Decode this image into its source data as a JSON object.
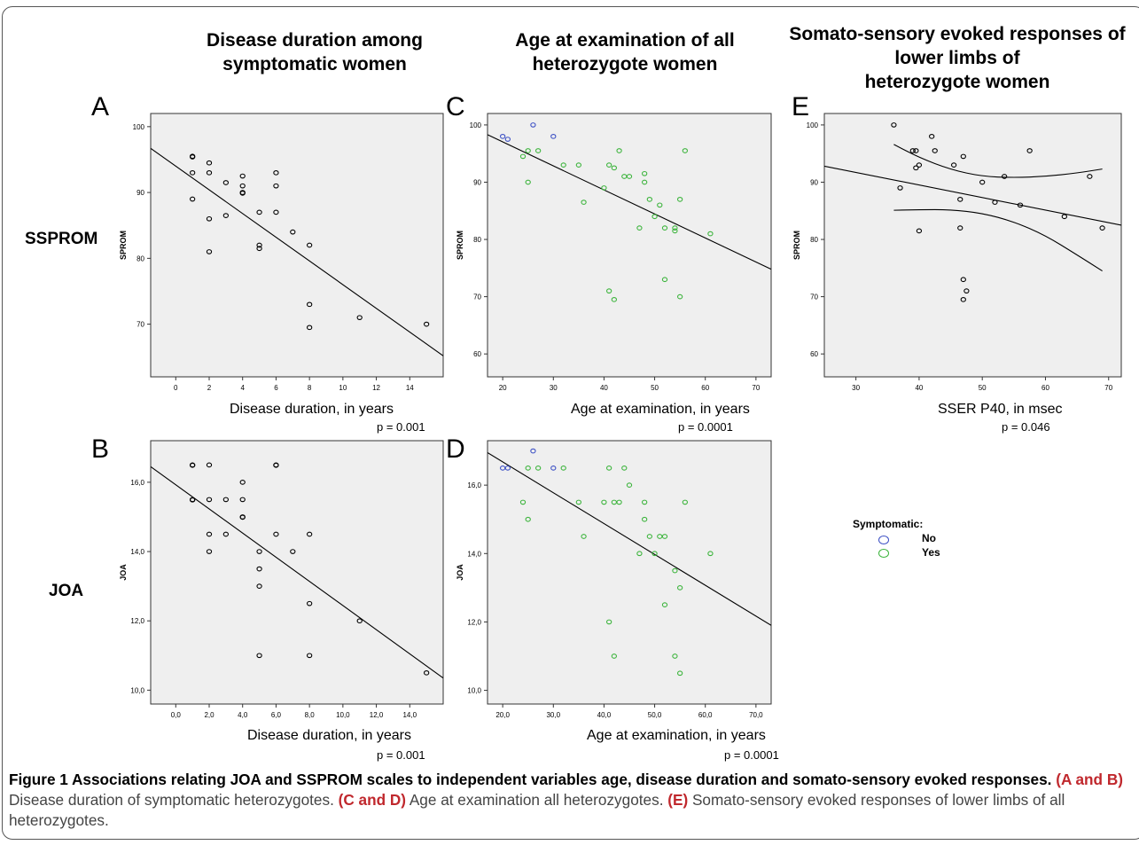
{
  "column_titles": [
    "Disease duration among\nsymptomatic women",
    "Age at examination of all\nheterozygote women",
    "Somato-sensory evoked responses of\nlower limbs of\nheterozygote women"
  ],
  "row_labels": [
    "SSPROM",
    "JOA"
  ],
  "legend": {
    "title": "Symptomatic:",
    "items": [
      {
        "label": "No",
        "color": "#3b4fc4"
      },
      {
        "label": "Yes",
        "color": "#3cb43c"
      }
    ]
  },
  "caption": {
    "bold": "Figure 1 Associations relating JOA and SSPROM scales to independent variables age, disease duration and somato-sensory evoked responses.",
    "ab_bold": "(A and B)",
    "ab_text": " Disease duration of symptomatic heterozygotes. ",
    "cd_bold": "(C and D)",
    "cd_text": " Age at examination all heterozygotes. ",
    "e_bold": "(E)",
    "e_text": " Somato-sensory evoked responses of lower limbs of all heterozygotes."
  },
  "chart_data": [
    {
      "id": "A",
      "type": "scatter",
      "xlabel": "Disease duration, in years",
      "ylabel": "SPROM",
      "pvalue": "p = 0.001",
      "xlim": [
        -1.5,
        16
      ],
      "ylim": [
        62,
        102
      ],
      "xticks": [
        0,
        2,
        4,
        6,
        8,
        10,
        12,
        14
      ],
      "yticks": [
        70,
        80,
        90,
        100
      ],
      "tick_format": "int",
      "fit_line": {
        "x": [
          -1.5,
          16
        ],
        "y": [
          96.7,
          65.2
        ]
      },
      "points": [
        {
          "x": 1,
          "y": 95.5
        },
        {
          "x": 1,
          "y": 95.4
        },
        {
          "x": 1,
          "y": 93
        },
        {
          "x": 1,
          "y": 89
        },
        {
          "x": 2,
          "y": 94.5
        },
        {
          "x": 2,
          "y": 93
        },
        {
          "x": 2,
          "y": 86
        },
        {
          "x": 2,
          "y": 81
        },
        {
          "x": 3,
          "y": 91.5
        },
        {
          "x": 3,
          "y": 86.5
        },
        {
          "x": 4,
          "y": 92.5
        },
        {
          "x": 4,
          "y": 91
        },
        {
          "x": 4,
          "y": 90
        },
        {
          "x": 4,
          "y": 89.9
        },
        {
          "x": 5,
          "y": 87
        },
        {
          "x": 5,
          "y": 82
        },
        {
          "x": 5,
          "y": 81.5
        },
        {
          "x": 6,
          "y": 93
        },
        {
          "x": 6,
          "y": 91
        },
        {
          "x": 6,
          "y": 87
        },
        {
          "x": 7,
          "y": 84
        },
        {
          "x": 8,
          "y": 82
        },
        {
          "x": 8,
          "y": 73
        },
        {
          "x": 8,
          "y": 69.5
        },
        {
          "x": 11,
          "y": 71
        },
        {
          "x": 15,
          "y": 70
        }
      ]
    },
    {
      "id": "B",
      "type": "scatter",
      "xlabel": "Disease duration, in years",
      "ylabel": "JOA",
      "pvalue": "p = 0.001",
      "xlim": [
        -1.5,
        16
      ],
      "ylim": [
        9.6,
        17.2
      ],
      "xticks": [
        0,
        2,
        4,
        6,
        8,
        10,
        12,
        14
      ],
      "yticks": [
        10,
        12,
        14,
        16
      ],
      "tick_format": "comma",
      "fit_line": {
        "x": [
          -1.5,
          16
        ],
        "y": [
          16.45,
          10.35
        ]
      },
      "points": [
        {
          "x": 1,
          "y": 16.5
        },
        {
          "x": 1,
          "y": 16.49
        },
        {
          "x": 1,
          "y": 15.5
        },
        {
          "x": 1,
          "y": 15.49
        },
        {
          "x": 2,
          "y": 16.5
        },
        {
          "x": 2,
          "y": 15.5
        },
        {
          "x": 2,
          "y": 14.5
        },
        {
          "x": 2,
          "y": 14
        },
        {
          "x": 3,
          "y": 15.5
        },
        {
          "x": 3,
          "y": 14.5
        },
        {
          "x": 4,
          "y": 16
        },
        {
          "x": 4,
          "y": 15.5
        },
        {
          "x": 4,
          "y": 15
        },
        {
          "x": 4,
          "y": 14.99
        },
        {
          "x": 5,
          "y": 14
        },
        {
          "x": 5,
          "y": 13.5
        },
        {
          "x": 5,
          "y": 13
        },
        {
          "x": 5,
          "y": 11
        },
        {
          "x": 6,
          "y": 16.5
        },
        {
          "x": 6,
          "y": 16.49
        },
        {
          "x": 6,
          "y": 14.5
        },
        {
          "x": 7,
          "y": 14
        },
        {
          "x": 8,
          "y": 14.5
        },
        {
          "x": 8,
          "y": 12.5
        },
        {
          "x": 8,
          "y": 11
        },
        {
          "x": 11,
          "y": 12
        },
        {
          "x": 15,
          "y": 10.5
        }
      ]
    },
    {
      "id": "C",
      "type": "scatter",
      "xlabel": "Age at examination, in years",
      "ylabel": "SPROM",
      "pvalue": "p = 0.0001",
      "xlim": [
        17,
        73
      ],
      "ylim": [
        56,
        102
      ],
      "xticks": [
        20,
        30,
        40,
        50,
        60,
        70
      ],
      "yticks": [
        60,
        70,
        80,
        90,
        100
      ],
      "tick_format": "int",
      "fit_line": {
        "x": [
          17,
          73
        ],
        "y": [
          98.3,
          74.8
        ]
      },
      "points": [
        {
          "x": 20,
          "y": 98,
          "g": "No"
        },
        {
          "x": 21,
          "y": 97.5,
          "g": "No"
        },
        {
          "x": 26,
          "y": 100,
          "g": "No"
        },
        {
          "x": 30,
          "y": 98,
          "g": "No"
        },
        {
          "x": 24,
          "y": 94.5,
          "g": "Yes"
        },
        {
          "x": 25,
          "y": 95.5,
          "g": "Yes"
        },
        {
          "x": 25,
          "y": 90,
          "g": "Yes"
        },
        {
          "x": 27,
          "y": 95.5,
          "g": "Yes"
        },
        {
          "x": 32,
          "y": 93,
          "g": "Yes"
        },
        {
          "x": 35,
          "y": 93,
          "g": "Yes"
        },
        {
          "x": 36,
          "y": 86.5,
          "g": "Yes"
        },
        {
          "x": 40,
          "y": 89,
          "g": "Yes"
        },
        {
          "x": 41,
          "y": 93,
          "g": "Yes"
        },
        {
          "x": 42,
          "y": 92.5,
          "g": "Yes"
        },
        {
          "x": 43,
          "y": 95.5,
          "g": "Yes"
        },
        {
          "x": 44,
          "y": 91,
          "g": "Yes"
        },
        {
          "x": 45,
          "y": 91,
          "g": "Yes"
        },
        {
          "x": 47,
          "y": 82,
          "g": "Yes"
        },
        {
          "x": 48,
          "y": 91.5,
          "g": "Yes"
        },
        {
          "x": 48,
          "y": 90,
          "g": "Yes"
        },
        {
          "x": 49,
          "y": 87,
          "g": "Yes"
        },
        {
          "x": 50,
          "y": 84,
          "g": "Yes"
        },
        {
          "x": 51,
          "y": 86,
          "g": "Yes"
        },
        {
          "x": 52,
          "y": 82,
          "g": "Yes"
        },
        {
          "x": 54,
          "y": 82,
          "g": "Yes"
        },
        {
          "x": 54,
          "y": 81.5,
          "g": "Yes"
        },
        {
          "x": 55,
          "y": 87,
          "g": "Yes"
        },
        {
          "x": 56,
          "y": 95.5,
          "g": "Yes"
        },
        {
          "x": 61,
          "y": 81,
          "g": "Yes"
        },
        {
          "x": 41,
          "y": 71,
          "g": "Yes"
        },
        {
          "x": 42,
          "y": 69.5,
          "g": "Yes"
        },
        {
          "x": 52,
          "y": 73,
          "g": "Yes"
        },
        {
          "x": 55,
          "y": 70,
          "g": "Yes"
        }
      ]
    },
    {
      "id": "D",
      "type": "scatter",
      "xlabel": "Age at examination, in years",
      "ylabel": "JOA",
      "pvalue": "p = 0.0001",
      "xlim": [
        17,
        73
      ],
      "ylim": [
        9.6,
        17.3
      ],
      "xticks": [
        20,
        30,
        40,
        50,
        60,
        70
      ],
      "yticks": [
        10,
        12,
        14,
        16
      ],
      "tick_format": "comma",
      "fit_line": {
        "x": [
          17,
          73
        ],
        "y": [
          16.95,
          11.9
        ]
      },
      "points": [
        {
          "x": 20,
          "y": 16.5,
          "g": "No"
        },
        {
          "x": 21,
          "y": 16.5,
          "g": "No"
        },
        {
          "x": 26,
          "y": 17,
          "g": "No"
        },
        {
          "x": 30,
          "y": 16.5,
          "g": "No"
        },
        {
          "x": 24,
          "y": 15.5,
          "g": "Yes"
        },
        {
          "x": 25,
          "y": 16.5,
          "g": "Yes"
        },
        {
          "x": 25,
          "y": 15,
          "g": "Yes"
        },
        {
          "x": 27,
          "y": 16.5,
          "g": "Yes"
        },
        {
          "x": 32,
          "y": 16.5,
          "g": "Yes"
        },
        {
          "x": 35,
          "y": 15.5,
          "g": "Yes"
        },
        {
          "x": 36,
          "y": 14.5,
          "g": "Yes"
        },
        {
          "x": 40,
          "y": 15.5,
          "g": "Yes"
        },
        {
          "x": 41,
          "y": 16.5,
          "g": "Yes"
        },
        {
          "x": 42,
          "y": 15.5,
          "g": "Yes"
        },
        {
          "x": 43,
          "y": 15.5,
          "g": "Yes"
        },
        {
          "x": 44,
          "y": 16.5,
          "g": "Yes"
        },
        {
          "x": 45,
          "y": 16,
          "g": "Yes"
        },
        {
          "x": 47,
          "y": 14,
          "g": "Yes"
        },
        {
          "x": 48,
          "y": 15.5,
          "g": "Yes"
        },
        {
          "x": 48,
          "y": 15,
          "g": "Yes"
        },
        {
          "x": 49,
          "y": 14.5,
          "g": "Yes"
        },
        {
          "x": 50,
          "y": 14,
          "g": "Yes"
        },
        {
          "x": 51,
          "y": 14.5,
          "g": "Yes"
        },
        {
          "x": 52,
          "y": 14.5,
          "g": "Yes"
        },
        {
          "x": 52,
          "y": 12.5,
          "g": "Yes"
        },
        {
          "x": 54,
          "y": 13.5,
          "g": "Yes"
        },
        {
          "x": 55,
          "y": 13,
          "g": "Yes"
        },
        {
          "x": 56,
          "y": 15.5,
          "g": "Yes"
        },
        {
          "x": 61,
          "y": 14,
          "g": "Yes"
        },
        {
          "x": 41,
          "y": 12,
          "g": "Yes"
        },
        {
          "x": 42,
          "y": 11,
          "g": "Yes"
        },
        {
          "x": 54,
          "y": 11,
          "g": "Yes"
        },
        {
          "x": 55,
          "y": 10.5,
          "g": "Yes"
        }
      ]
    },
    {
      "id": "E",
      "type": "scatter",
      "xlabel": "SSER P40, in msec",
      "ylabel": "SPROM",
      "pvalue": "p = 0.046",
      "xlim": [
        25,
        72
      ],
      "ylim": [
        56,
        102
      ],
      "xticks": [
        30,
        40,
        50,
        60,
        70
      ],
      "yticks": [
        60,
        70,
        80,
        90,
        100
      ],
      "tick_format": "int",
      "fit_line": {
        "x": [
          25,
          72
        ],
        "y": [
          92.8,
          82.5
        ]
      },
      "ci_upper": {
        "x": [
          36,
          40,
          45,
          50,
          55,
          60,
          65,
          69
        ],
        "y": [
          96.6,
          94.3,
          92.2,
          91.0,
          90.8,
          91.0,
          91.6,
          92.3
        ]
      },
      "ci_lower": {
        "x": [
          36,
          40,
          45,
          50,
          55,
          60,
          65,
          69
        ],
        "y": [
          85.1,
          85.2,
          85.2,
          84.6,
          83.1,
          80.7,
          77.3,
          74.5
        ]
      },
      "points": [
        {
          "x": 36,
          "y": 100
        },
        {
          "x": 37,
          "y": 89
        },
        {
          "x": 39,
          "y": 95.5
        },
        {
          "x": 39.5,
          "y": 95.5
        },
        {
          "x": 39.5,
          "y": 92.5
        },
        {
          "x": 40,
          "y": 93
        },
        {
          "x": 40,
          "y": 81.5
        },
        {
          "x": 42,
          "y": 98
        },
        {
          "x": 42.5,
          "y": 95.5
        },
        {
          "x": 45.5,
          "y": 93
        },
        {
          "x": 47,
          "y": 94.5
        },
        {
          "x": 46.5,
          "y": 87
        },
        {
          "x": 46.5,
          "y": 82
        },
        {
          "x": 47,
          "y": 73
        },
        {
          "x": 47,
          "y": 69.5
        },
        {
          "x": 47.5,
          "y": 71
        },
        {
          "x": 50,
          "y": 90
        },
        {
          "x": 52,
          "y": 86.5
        },
        {
          "x": 53.5,
          "y": 91
        },
        {
          "x": 56,
          "y": 86
        },
        {
          "x": 57.5,
          "y": 95.5
        },
        {
          "x": 63,
          "y": 84
        },
        {
          "x": 67,
          "y": 91
        },
        {
          "x": 69,
          "y": 82
        }
      ]
    }
  ]
}
